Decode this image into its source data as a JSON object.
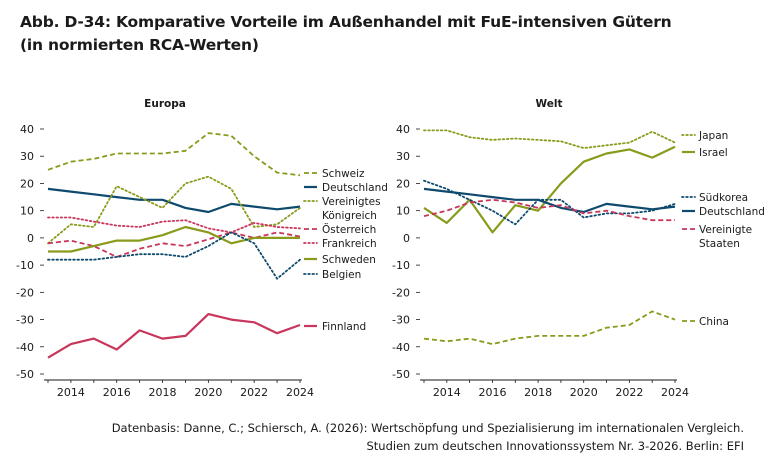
{
  "figure": {
    "title_line1": "Abb. D-34: Komparative Vorteile im Außenhandel mit FuE-intensiven Gütern",
    "title_line2": "(in normierten RCA-Werten)",
    "source_line1": "Datenbasis: Danne, C.; Schiersch, A. (2026): Wertschöpfung und Spezialisierung im internationalen Vergleich.",
    "source_line2": "Studien zum deutschen Innovationssystem Nr. 3-2026. Berlin: EFI"
  },
  "colors": {
    "olive": "#8a9a1b",
    "navy": "#0e4a6e",
    "crimson": "#c8365c",
    "axis": "#1a1a1a",
    "grid": "#d7d7d7"
  },
  "chart_data": [
    {
      "type": "line",
      "title": "Europa",
      "x": [
        2013,
        2014,
        2015,
        2016,
        2017,
        2018,
        2019,
        2020,
        2021,
        2022,
        2023,
        2024
      ],
      "x_ticks": [
        2014,
        2016,
        2018,
        2020,
        2022,
        2024
      ],
      "ylim": [
        -50,
        40
      ],
      "y_ticks": [
        40,
        30,
        20,
        10,
        0,
        -10,
        -20,
        -30,
        -40,
        -50
      ],
      "grid": false,
      "legend_position": "right",
      "series": [
        {
          "name": "Schweiz",
          "color": "olive",
          "style": "dashed",
          "values": [
            25,
            28,
            29,
            31,
            31,
            31,
            32,
            38.5,
            37.5,
            30,
            24,
            23
          ]
        },
        {
          "name": "Deutschland",
          "color": "navy",
          "style": "solid",
          "values": [
            18,
            17,
            16,
            15,
            14,
            14,
            11,
            9.5,
            12.5,
            11.5,
            10.5,
            11.5
          ]
        },
        {
          "name": "Vereinigtes Königreich",
          "color": "olive",
          "style": "dotted",
          "values": [
            -2,
            5,
            4,
            19,
            15,
            11,
            20,
            22.5,
            18,
            4,
            5,
            11
          ]
        },
        {
          "name": "Österreich",
          "color": "crimson",
          "style": "dashed",
          "values": [
            -2,
            -1,
            -3,
            -7,
            -4,
            -2,
            -3,
            -0.5,
            2,
            0,
            2,
            0.5
          ]
        },
        {
          "name": "Frankreich",
          "color": "crimson",
          "style": "dotted",
          "values": [
            7.5,
            7.5,
            6,
            4.5,
            4,
            6,
            6.5,
            3.5,
            2,
            5.5,
            4,
            3.5
          ]
        },
        {
          "name": "Schweden",
          "color": "olive",
          "style": "solid",
          "values": [
            -5,
            -5,
            -3,
            -1,
            -1,
            1,
            4,
            2,
            -2,
            0,
            0,
            0
          ]
        },
        {
          "name": "Belgien",
          "color": "navy",
          "style": "dotted",
          "values": [
            -8,
            -8,
            -8,
            -7,
            -6,
            -6,
            -7,
            -3,
            2,
            -2,
            -15,
            -8
          ]
        },
        {
          "name": "Finnland",
          "color": "crimson",
          "style": "solid",
          "values": [
            -44,
            -39,
            -37,
            -41,
            -34,
            -37,
            -36,
            -28,
            -30,
            -31,
            -35,
            -32
          ]
        }
      ]
    },
    {
      "type": "line",
      "title": "Welt",
      "x": [
        2013,
        2014,
        2015,
        2016,
        2017,
        2018,
        2019,
        2020,
        2021,
        2022,
        2023,
        2024
      ],
      "x_ticks": [
        2014,
        2016,
        2018,
        2020,
        2022,
        2024
      ],
      "ylim": [
        -50,
        40
      ],
      "y_ticks": [
        40,
        30,
        20,
        10,
        0,
        -10,
        -20,
        -30,
        -40,
        -50
      ],
      "grid": false,
      "legend_position": "right",
      "series": [
        {
          "name": "Japan",
          "color": "olive",
          "style": "dotted",
          "values": [
            39.5,
            39.5,
            37,
            36,
            36.5,
            36,
            35.5,
            33,
            34,
            35,
            39,
            35
          ]
        },
        {
          "name": "Israel",
          "color": "olive",
          "style": "solid",
          "values": [
            11,
            5.5,
            14,
            2,
            12,
            10,
            20,
            28,
            31,
            32.5,
            29.5,
            33.5
          ]
        },
        {
          "name": "Südkorea",
          "color": "navy",
          "style": "dotted",
          "values": [
            21,
            18,
            14,
            10,
            5,
            14,
            14,
            7.5,
            9,
            9,
            10,
            12.5
          ]
        },
        {
          "name": "Deutschland",
          "color": "navy",
          "style": "solid",
          "values": [
            18,
            17,
            16,
            15,
            14,
            14,
            11,
            9.5,
            12.5,
            11.5,
            10.5,
            11.5
          ]
        },
        {
          "name": "Vereinigte Staaten",
          "color": "crimson",
          "style": "dashed",
          "values": [
            8,
            10,
            13,
            14,
            13,
            11,
            12,
            9,
            10,
            8,
            6.5,
            6.5
          ]
        },
        {
          "name": "China",
          "color": "olive",
          "style": "dashed",
          "values": [
            -37,
            -38,
            -37,
            -39,
            -37,
            -36,
            -36,
            -36,
            -33,
            -32,
            -27,
            -30
          ]
        }
      ]
    }
  ]
}
